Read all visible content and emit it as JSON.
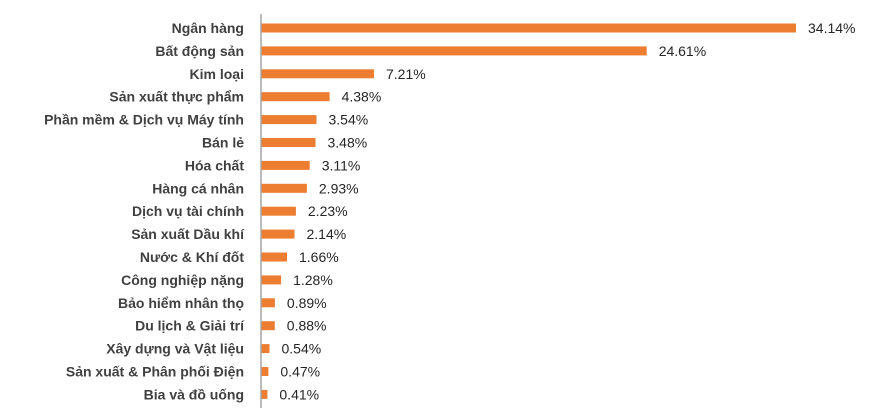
{
  "chart_data": {
    "type": "bar",
    "orientation": "horizontal",
    "title": "",
    "xlabel": "",
    "ylabel": "",
    "bar_color": "#ed7d31",
    "grid": false,
    "legend": "none",
    "xlim": [
      0,
      36
    ],
    "categories": [
      "Ngân hàng",
      "Bất động sản",
      "Kim loại",
      "Sản xuất thực phẩm",
      "Phần mềm & Dịch vụ Máy tính",
      "Bán lẻ",
      "Hóa chất",
      "Hàng cá nhân",
      "Dịch vụ tài chính",
      "Sản xuất Dầu khí",
      "Nước & Khí đốt",
      "Công nghiệp nặng",
      "Bảo hiểm nhân thọ",
      "Du lịch & Giải trí",
      "Xây dựng và Vật liệu",
      "Sản xuất & Phân phối Điện",
      "Bia và đồ uống"
    ],
    "values": [
      34.14,
      24.61,
      7.21,
      4.38,
      3.54,
      3.48,
      3.11,
      2.93,
      2.23,
      2.14,
      1.66,
      1.28,
      0.89,
      0.88,
      0.54,
      0.47,
      0.41
    ],
    "value_labels": [
      "34.14%",
      "24.61%",
      "7.21%",
      "4.38%",
      "3.54%",
      "3.48%",
      "3.11%",
      "2.93%",
      "2.23%",
      "2.14%",
      "1.66%",
      "1.28%",
      "0.89%",
      "0.88%",
      "0.54%",
      "0.47%",
      "0.41%"
    ]
  }
}
